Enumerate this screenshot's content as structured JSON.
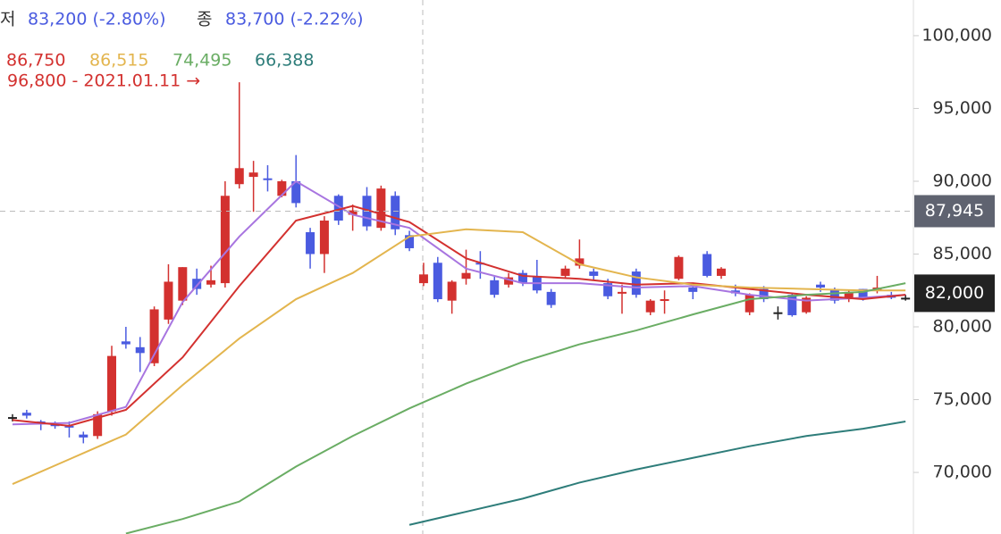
{
  "chart_data": {
    "type": "candlestick",
    "header": {
      "low_label": "저",
      "low_text": "83,200 (-2.80%)",
      "close_label": "종",
      "close_text": "83,700 (-2.22%)",
      "ma_labels": [
        {
          "text": "86,750",
          "color": "#d3312f"
        },
        {
          "text": "86,515",
          "color": "#e3b54e"
        },
        {
          "text": "74,495",
          "color": "#6aad64"
        },
        {
          "text": "66,388",
          "color": "#2e7d7a"
        }
      ],
      "annotation": "96,800 - 2021.01.11 →"
    },
    "up_color": "#d3312f",
    "down_color": "#4a5be0",
    "flat_color": "#222222",
    "open": [
      73800,
      74100,
      73500,
      73300,
      73200,
      72600,
      72500,
      74200,
      79000,
      78600,
      77500,
      80500,
      81800,
      83300,
      82900,
      83000,
      89800,
      90300,
      90200,
      89000,
      90000,
      86500,
      85000,
      89000,
      87700,
      89000,
      86800,
      89000,
      86300,
      83000,
      84400,
      81800,
      83300,
      84400,
      83200,
      82900,
      83700,
      83500,
      82400,
      83500,
      84200,
      83800,
      83000,
      82300,
      83800,
      81000,
      81800,
      83300,
      82700,
      85000,
      83500,
      82500,
      81000,
      82600,
      81000,
      82200,
      81000,
      82900,
      82600,
      81900,
      82600,
      82500,
      82200,
      82000
    ],
    "high": [
      74000,
      74300,
      73600,
      73500,
      73500,
      72800,
      74200,
      78700,
      80000,
      79300,
      81400,
      84300,
      84100,
      84000,
      84200,
      90000,
      96800,
      91400,
      91100,
      90100,
      91800,
      86800,
      87600,
      89100,
      88400,
      89600,
      89700,
      89300,
      86600,
      84400,
      84800,
      83200,
      85300,
      85200,
      83500,
      83700,
      83900,
      84600,
      82600,
      84200,
      86000,
      84000,
      83300,
      82900,
      84000,
      81900,
      82500,
      84900,
      83000,
      85200,
      84100,
      82900,
      82300,
      82800,
      81400,
      82300,
      82100,
      83100,
      82700,
      82500,
      82600,
      83500,
      82400,
      82200
    ],
    "low": [
      73500,
      73700,
      72900,
      73000,
      72400,
      72000,
      72300,
      73900,
      78500,
      76900,
      77300,
      80200,
      81500,
      82200,
      82700,
      82700,
      89500,
      87900,
      89300,
      88900,
      88200,
      84000,
      83700,
      87000,
      86600,
      86600,
      86600,
      86300,
      85200,
      82800,
      81700,
      80900,
      82900,
      83300,
      82000,
      82700,
      82800,
      82300,
      81300,
      83400,
      84000,
      83200,
      81900,
      80900,
      82000,
      80800,
      80900,
      83200,
      81900,
      83400,
      83300,
      82100,
      80800,
      81700,
      80500,
      80700,
      80900,
      82400,
      81600,
      81700,
      81800,
      82300,
      81900,
      81800
    ],
    "close": [
      73800,
      73900,
      73300,
      73200,
      73100,
      72400,
      74000,
      78000,
      78800,
      78200,
      81200,
      83100,
      84100,
      82600,
      83200,
      89000,
      90900,
      90600,
      90100,
      90000,
      88500,
      85000,
      87300,
      87300,
      88000,
      86900,
      89500,
      86700,
      85400,
      83600,
      81900,
      83100,
      83700,
      84300,
      82200,
      83400,
      83000,
      82500,
      81500,
      84000,
      84700,
      83500,
      82100,
      82400,
      82200,
      81800,
      81900,
      84800,
      82400,
      83500,
      84000,
      82300,
      82200,
      81900,
      81000,
      80800,
      82000,
      82700,
      81800,
      82400,
      82000,
      82700,
      82000,
      82000
    ],
    "line_x": [
      0,
      4,
      8,
      12,
      16,
      20,
      24,
      28,
      32,
      36,
      40,
      44,
      48,
      52,
      56,
      60,
      63
    ],
    "series": [
      {
        "color": "#a875e0",
        "values": [
          73300,
          73400,
          74500,
          81700,
          86200,
          90000,
          87700,
          86800,
          84000,
          83000,
          83000,
          82700,
          82800,
          82200,
          81800,
          82000,
          82200
        ]
      },
      {
        "color": "#d3312f",
        "values": [
          73600,
          73200,
          74300,
          77900,
          82800,
          87300,
          88300,
          87200,
          84700,
          83500,
          83300,
          82900,
          83000,
          82600,
          82200,
          81900,
          82200
        ]
      },
      {
        "color": "#e3b54e",
        "values": [
          69200,
          70900,
          72600,
          76000,
          79200,
          81900,
          83700,
          86200,
          86700,
          86500,
          84300,
          83400,
          82900,
          82700,
          82600,
          82500,
          82500
        ]
      },
      {
        "color": "#6aad64",
        "values": [
          null,
          null,
          65800,
          66800,
          68000,
          70400,
          72500,
          74400,
          76100,
          77600,
          78800,
          79750,
          80850,
          81900,
          82200,
          82400,
          83000
        ]
      },
      {
        "color": "#2e7d7a",
        "values": [
          null,
          null,
          null,
          null,
          null,
          null,
          null,
          66400,
          67300,
          68200,
          69300,
          70200,
          71000,
          71800,
          72500,
          73000,
          73500
        ]
      }
    ],
    "ylim": [
      65770,
      102450
    ],
    "yticks": [
      {
        "value": 70000,
        "label": "70,000"
      },
      {
        "value": 75000,
        "label": "75,000"
      },
      {
        "value": 80000,
        "label": "80,000"
      },
      {
        "value": 85000,
        "label": "85,000"
      },
      {
        "value": 90000,
        "label": "90,000"
      },
      {
        "value": 95000,
        "label": "95,000"
      },
      {
        "value": 100000,
        "label": "100,000"
      }
    ],
    "crosshair": {
      "value": 87945,
      "label": "87,945"
    },
    "last_price": {
      "value": 82000,
      "label": "82,000"
    }
  }
}
